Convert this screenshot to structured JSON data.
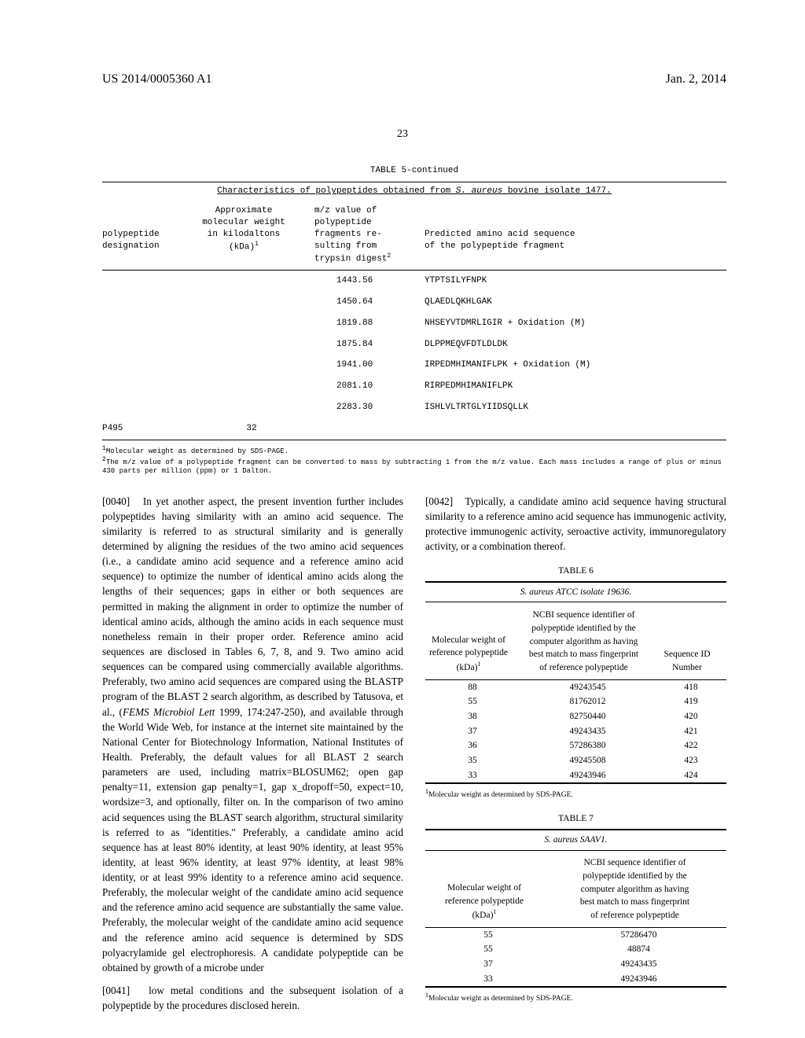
{
  "header": {
    "left": "US 2014/0005360 A1",
    "right": "Jan. 2, 2014",
    "page": "23"
  },
  "table5": {
    "title": "TABLE 5-continued",
    "caption_a": "Characteristics of polypeptides obtained from ",
    "caption_b": "S. aureus",
    "caption_c": " bovine isolate 1477.",
    "head": {
      "c1a": "polypeptide",
      "c1b": "designation",
      "c2a": "Approximate",
      "c2b": "molecular weight",
      "c2c": "in kilodaltons",
      "c2d": "(kDa)",
      "c3a": "m/z value of",
      "c3b": "polypeptide",
      "c3c": "fragments re-",
      "c3d": "sulting from",
      "c3e": "trypsin digest",
      "c4a": "Predicted amino acid sequence",
      "c4b": "of the polypeptide fragment"
    },
    "rows": [
      {
        "c3": "1443.56",
        "c4": "YTPTSILYFNPK"
      },
      {
        "c3": "1450.64",
        "c4": "QLAEDLQKHLGAK"
      },
      {
        "c3": "1819.88",
        "c4": "NHSEYVTDMRLIGIR + Oxidation (M)"
      },
      {
        "c3": "1875.84",
        "c4": "DLPPMEQVFDTLDLDK"
      },
      {
        "c3": "1941.00",
        "c4": "IRPEDMHIMANIFLPK + Oxidation (M)"
      },
      {
        "c3": "2081.10",
        "c4": "RIRPEDMHIMANIFLPK"
      },
      {
        "c3": "2283.30",
        "c4": "ISHLVLTRTGLYIIDSQLLK"
      }
    ],
    "lastrow": {
      "c1": "P495",
      "c2": "32"
    },
    "note1": "Molecular weight as determined by SDS-PAGE.",
    "note2": "The m/z value of a polypeptide fragment can be converted to mass by subtracting 1 from the m/z value. Each mass includes a range of plus or minus 430 parts per million (ppm) or 1 Dalton."
  },
  "paras": {
    "p40_num": "[0040]",
    "p40": "In yet another aspect, the present invention further includes polypeptides having similarity with an amino acid sequence. The similarity is referred to as structural similarity and is generally determined by aligning the residues of the two amino acid sequences (i.e., a candidate amino acid sequence and a reference amino acid sequence) to optimize the number of identical amino acids along the lengths of their sequences; gaps in either or both sequences are permitted in making the alignment in order to optimize the number of identical amino acids, although the amino acids in each sequence must nonetheless remain in their proper order. Reference amino acid sequences are disclosed in Tables 6, 7, 8, and 9. Two amino acid sequences can be compared using commercially available algorithms. Preferably, two amino acid sequences are compared using the BLASTP program of the BLAST 2 search algorithm, as described by Tatusova, et al., (",
    "p40_ref": "FEMS Microbiol Lett",
    "p40_b": " 1999, 174:247-250), and available through the World Wide Web, for instance at the internet site maintained by the National Center for Biotechnology Information, National Institutes of Health. Preferably, the default values for all BLAST 2 search parameters are used, including matrix=BLOSUM62; open gap penalty=11, extension gap penalty=1, gap x_dropoff=50, expect=10, wordsize=3, and optionally, filter on. In the comparison of two amino acid sequences using the BLAST search algorithm, structural similarity is referred to as \"identities.\" Preferably, a candidate amino acid sequence has at least 80% identity, at least 90% identity, at least 95% identity, at least 96% identity, at least 97% identity, at least 98% identity, or at least 99% identity to a reference amino acid sequence. Preferably, the molecular weight of the candidate amino acid sequence and the reference amino acid sequence are substantially the same value. Preferably, the molecular weight of the candidate amino acid sequence and the reference amino acid sequence is determined by SDS polyacrylamide gel electrophoresis. A candidate polypeptide can be obtained by growth of a microbe under",
    "p41_num": "[0041]",
    "p41": "low metal conditions and the subsequent isolation of a polypeptide by the procedures disclosed herein.",
    "p42_num": "[0042]",
    "p42": "Typically, a candidate amino acid sequence having structural similarity to a reference amino acid sequence has immunogenic activity, protective immunogenic activity, seroactive activity, immunoregulatory activity, or a combination thereof."
  },
  "table6": {
    "title": "TABLE 6",
    "caption_a": "S. aureus",
    "caption_b": " ATCC isolate 19636.",
    "head": {
      "c1a": "Molecular weight of",
      "c1b": "reference polypeptide",
      "c1c": "(kDa)",
      "c2a": "NCBI sequence identifier of",
      "c2b": "polypeptide identified by the",
      "c2c": "computer algorithm as having",
      "c2d": "best match to mass fingerprint",
      "c2e": "of reference polypeptide",
      "c3a": "Sequence ID",
      "c3b": "Number"
    },
    "rows": [
      {
        "c1": "88",
        "c2": "49243545",
        "c3": "418"
      },
      {
        "c1": "55",
        "c2": "81762012",
        "c3": "419"
      },
      {
        "c1": "38",
        "c2": "82750440",
        "c3": "420"
      },
      {
        "c1": "37",
        "c2": "49243435",
        "c3": "421"
      },
      {
        "c1": "36",
        "c2": "57286380",
        "c3": "422"
      },
      {
        "c1": "35",
        "c2": "49245508",
        "c3": "423"
      },
      {
        "c1": "33",
        "c2": "49243946",
        "c3": "424"
      }
    ],
    "note": "Molecular weight as determined by SDS-PAGE."
  },
  "table7": {
    "title": "TABLE 7",
    "caption_a": "S. aureus",
    "caption_b": " SAAV1.",
    "head": {
      "c1a": "Molecular weight of",
      "c1b": "reference polypeptide",
      "c1c": "(kDa)",
      "c2a": "NCBI sequence identifier of",
      "c2b": "polypeptide identified by the",
      "c2c": "computer algorithm as having",
      "c2d": "best match to mass fingerprint",
      "c2e": "of reference polypeptide"
    },
    "rows": [
      {
        "c1": "55",
        "c2": "57286470"
      },
      {
        "c1": "55",
        "c2": "48874"
      },
      {
        "c1": "37",
        "c2": "49243435"
      },
      {
        "c1": "33",
        "c2": "49243946"
      }
    ],
    "note": "Molecular weight as determined by SDS-PAGE."
  }
}
